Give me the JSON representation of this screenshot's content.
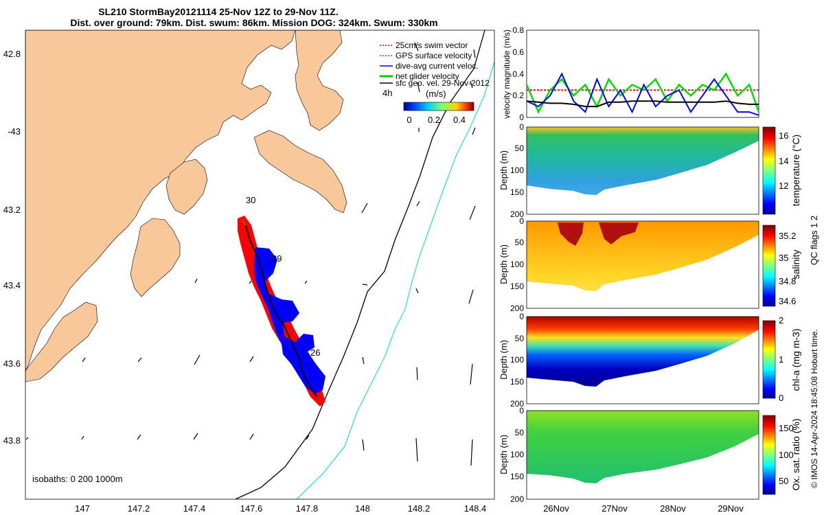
{
  "title_line1": "SL210 StormBay20121114 25-Nov 12Z to 29-Nov 11Z.",
  "title_line2": "Dist. over ground: 79km. Dist. swum: 86km. Mission DOG: 324km. Swum: 330km",
  "map": {
    "lon_ticks": [
      "147",
      "147.2",
      "147.4",
      "147.6",
      "147.8",
      "148",
      "148.2",
      "148.4"
    ],
    "lat_ticks": [
      "42.8",
      "-43",
      "43.2",
      "43.4",
      "43.6",
      "43.8"
    ],
    "legend": [
      {
        "label": "25cm/s swim vector",
        "color": "#ff0000"
      },
      {
        "label": "GPS surface velocity",
        "color": "#ff00ff"
      },
      {
        "label": "dive-avg current veloc.",
        "color": "#0000ff"
      },
      {
        "label": "net glider velocity",
        "color": "#00cc00"
      },
      {
        "label": "sfc geo. vel. 29-Nov-2012",
        "color": "#000000"
      }
    ],
    "colorbar_units": "(m/s)",
    "colorbar_side": "4h",
    "colorbar_ticks": [
      "0",
      "0.2",
      "0.4"
    ],
    "isobaths_label": "isobaths: 0   200  1000m",
    "track_labels": [
      "30",
      "29",
      "26"
    ],
    "land_color": "#f8c89a",
    "isobath_200_color": "#000000",
    "isobath_1000_color": "#33dddd"
  },
  "chart_data": [
    {
      "type": "line",
      "ylabel": "velocity magnitude (m/s)",
      "ylim": [
        0,
        0.8
      ],
      "yticks": [
        "0",
        "0.2",
        "0.4",
        "0.6",
        "0.8"
      ],
      "x_days": [
        25.5,
        25.7,
        25.9,
        26.1,
        26.3,
        26.5,
        26.7,
        26.9,
        27.1,
        27.3,
        27.5,
        27.7,
        27.9,
        28.1,
        28.3,
        28.5,
        28.7,
        28.9,
        29.1,
        29.3,
        29.46
      ],
      "series": [
        {
          "color": "#ff0000",
          "values": [
            0.25,
            0.25,
            0.25,
            0.25,
            0.25,
            0.25,
            0.25,
            0.25,
            0.25,
            0.25,
            0.25,
            0.25,
            0.25,
            0.25,
            0.25,
            0.25,
            0.25,
            0.25,
            0.25,
            0.25,
            0.25
          ]
        },
        {
          "color": "#00dd00",
          "values": [
            0.3,
            0.05,
            0.25,
            0.35,
            0.2,
            0.3,
            0.1,
            0.35,
            0.2,
            0.3,
            0.25,
            0.35,
            0.15,
            0.3,
            0.2,
            0.3,
            0.25,
            0.4,
            0.2,
            0.3,
            0.05
          ]
        },
        {
          "color": "#0000ff",
          "values": [
            0.15,
            0.1,
            0.2,
            0.4,
            0.15,
            0.05,
            0.35,
            0.1,
            0.25,
            0.05,
            0.3,
            0.1,
            0.2,
            0.25,
            0.05,
            0.2,
            0.35,
            0.2,
            0.05,
            0.05,
            0.02
          ]
        },
        {
          "color": "#000000",
          "values": [
            0.15,
            0.14,
            0.13,
            0.13,
            0.12,
            0.1,
            0.1,
            0.14,
            0.14,
            0.15,
            0.15,
            0.15,
            0.14,
            0.14,
            0.14,
            0.14,
            0.14,
            0.15,
            0.13,
            0.12,
            0.12
          ]
        }
      ]
    },
    {
      "type": "heatmap",
      "ylabel": "Depth (m)",
      "cblabel": "temperature (°C)",
      "cbticks": [
        "12",
        "14",
        "16"
      ],
      "cbrange": [
        10.5,
        16.5
      ],
      "ylim": [
        0,
        200
      ],
      "yticks": [
        "0",
        "50",
        "100",
        "150",
        "200"
      ]
    },
    {
      "type": "heatmap",
      "ylabel": "Depth (m)",
      "cblabel": "salinity",
      "cbticks": [
        "34.6",
        "34.8",
        "35",
        "35.2"
      ],
      "cbrange": [
        34.55,
        35.3
      ],
      "ylim": [
        0,
        200
      ],
      "yticks": [
        "0",
        "50",
        "100",
        "150",
        "200"
      ]
    },
    {
      "type": "heatmap",
      "ylabel": "Depth (m)",
      "cblabel": "chl-a (mg m-3)",
      "cbticks": [
        "0",
        "1",
        "2"
      ],
      "cbrange": [
        0,
        2
      ],
      "ylim": [
        0,
        200
      ],
      "yticks": [
        "0",
        "50",
        "100",
        "150",
        "200"
      ]
    },
    {
      "type": "heatmap",
      "ylabel": "Depth (m)",
      "cblabel": "Ox. sat. ratio (%)",
      "cbticks": [
        "50",
        "100",
        "150"
      ],
      "cbrange": [
        25,
        175
      ],
      "ylim": [
        0,
        200
      ],
      "yticks": [
        "0",
        "50",
        "100",
        "150",
        "200"
      ]
    }
  ],
  "time_ticks": [
    "26Nov",
    "27Nov",
    "28Nov",
    "29Nov"
  ],
  "qc_note": "QC flags 1  2",
  "credit": "© IMOS 14-Apr-2024 18:45:08 Hobart time."
}
